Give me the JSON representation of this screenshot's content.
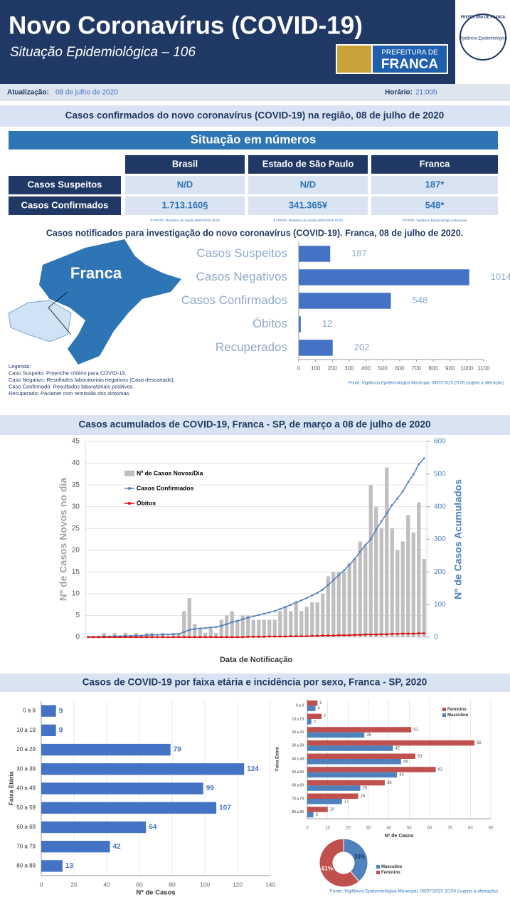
{
  "header": {
    "title": "Novo Coronavírus (COVID-19)",
    "subtitle": "Situação Epidemiológica – 106",
    "logo_top": "PREFEITURA DE",
    "logo_bottom": "FRANCA",
    "seal_top": "PREFEITURA DE FRANCA",
    "seal_middle": "Vigilância Epidemiológica"
  },
  "update": {
    "label": "Atualização:",
    "date": "08 de julho de 2020",
    "time_label": "Horário:",
    "time": "21:00h"
  },
  "sections": [
    "Casos confirmados do novo coronavírus (COVID-19) na região, 08 de julho de 2020",
    "Casos acumulados de COVID-19, Franca - SP, de março a 08 de julho de 2020",
    "Casos de COVID-19 por faixa etária e incidência por sexo, Franca - SP, 2020"
  ],
  "table": {
    "title": "Situação em números",
    "columns": [
      "Brasil",
      "Estado de São Paulo",
      "Franca"
    ],
    "rows": [
      [
        "Casos Suspeitos",
        "N/D",
        "N/D",
        "187*"
      ],
      [
        "Casos Confirmados",
        "1.713.160§",
        "341.365¥",
        "548*"
      ]
    ],
    "footnotes": [
      "§ FONTE: Ministério da Saúde 08/07/2020 18:20",
      "¥ FONTE: Ministério da Saúde 08/07/2020 18:20",
      "*FONTE: Vigilância Epidemiológica Municipal"
    ]
  },
  "map_label": "Franca",
  "legend_notes": [
    "Legenda:",
    "Caso Suspeito: Preenche critério para COVID-19.",
    "Caso Negativo: Resultados laboratoriais negativos (Caso descartado).",
    "Caso Confirmado: Resultados laboratoriais positivos.",
    "Recuperado: Paciente com remissão dos sintomas."
  ],
  "footer_source": "Fonte: Vigilância Epidemiológica Municipal, 08/07/2020 20:00 (sujeito à alteração)",
  "chart_data": [
    {
      "type": "bar",
      "orientation": "horizontal",
      "title": "Casos notificados para investigação do novo coronavírus (COVID-19). Franca, 08 de julho de 2020.",
      "categories": [
        "Casos Suspeitos",
        "Casos Negativos",
        "Casos Confirmados",
        "Óbitos",
        "Recuperados"
      ],
      "values": [
        187,
        1014,
        548,
        12,
        202
      ],
      "color": "#4472c4",
      "xlim": [
        0,
        1100
      ],
      "xticks": [
        0,
        100,
        200,
        300,
        400,
        500,
        600,
        700,
        800,
        900,
        1000,
        1100
      ],
      "grid": false,
      "source": "Fonte: Vigilância Epidemiológica Municipal, 08/07/2020 20:00  (sujeito à alteração)"
    },
    {
      "type": "combo",
      "x_label": "Data de Notificação",
      "y_label": "Nº de Casos Novos no dia",
      "y2_label": "Nº de Casos Acumulados",
      "categories": [
        null,
        null,
        null,
        null,
        null,
        null,
        null,
        null,
        null,
        null,
        null,
        null,
        null,
        null,
        null,
        null,
        null,
        null,
        null,
        null,
        null,
        null,
        null,
        null,
        null,
        null,
        null,
        null,
        null,
        null,
        null,
        null,
        null,
        null,
        null,
        null,
        null,
        null,
        null,
        null,
        null,
        null,
        null,
        null,
        null,
        null,
        null,
        null,
        null,
        null,
        null,
        null,
        null,
        null,
        null,
        null,
        null,
        null,
        null,
        null,
        null,
        null,
        null,
        null
      ],
      "series": [
        {
          "name": "Nº de Casos Novos/Dia",
          "color": "#bfbfbf",
          "axis": "y",
          "values": [
            0,
            0,
            0,
            1,
            0,
            1,
            0,
            1,
            0,
            1,
            0,
            1,
            1,
            0,
            1,
            0,
            1,
            1,
            6,
            9,
            3,
            2,
            1,
            2,
            1,
            4,
            5,
            6,
            4,
            5,
            5,
            4,
            4,
            4,
            4,
            4,
            6,
            7,
            6,
            8,
            6,
            7,
            8,
            8,
            10,
            14,
            15,
            15,
            15,
            17,
            18,
            22,
            21,
            35,
            30,
            25,
            39,
            25,
            20,
            22,
            28,
            24,
            31,
            18
          ]
        },
        {
          "name": "Casos Confirmados",
          "color": "#4f81bd",
          "axis": "y2",
          "values": [
            1,
            1,
            1,
            2,
            2,
            3,
            3,
            4,
            4,
            5,
            5,
            6,
            7,
            7,
            8,
            8,
            9,
            10,
            16,
            22,
            25,
            27,
            28,
            30,
            31,
            35,
            40,
            46,
            50,
            55,
            60,
            64,
            68,
            72,
            76,
            80,
            86,
            93,
            99,
            107,
            113,
            120,
            128,
            136,
            146,
            160,
            175,
            190,
            205,
            222,
            240,
            262,
            283,
            300,
            330,
            355,
            380,
            405,
            425,
            447,
            475,
            499,
            530,
            548
          ]
        },
        {
          "name": "Óbitos",
          "color": "#e00000",
          "axis": "y2",
          "values": [
            0,
            0,
            0,
            0,
            0,
            0,
            0,
            0,
            0,
            0,
            0,
            0,
            0,
            0,
            0,
            0,
            0,
            0,
            0,
            0,
            0,
            0,
            0,
            0,
            0,
            0,
            0,
            0,
            0,
            0,
            1,
            1,
            1,
            1,
            2,
            2,
            2,
            2,
            3,
            3,
            3,
            3,
            4,
            4,
            5,
            5,
            5,
            6,
            6,
            6,
            7,
            7,
            8,
            8,
            8,
            9,
            9,
            10,
            10,
            11,
            11,
            11,
            12,
            12
          ]
        }
      ],
      "ylim": [
        0,
        45
      ],
      "yticks": [
        0,
        5,
        10,
        15,
        20,
        25,
        30,
        35,
        40,
        45
      ],
      "y2lim": [
        0,
        600
      ],
      "y2ticks": [
        0,
        100,
        200,
        300,
        400,
        500,
        600
      ],
      "grid": true,
      "legend": "upper left"
    },
    {
      "type": "bar",
      "orientation": "horizontal",
      "x_label": "Nº de Casos",
      "y_label": "Faixa Etária",
      "categories": [
        "0 a 9",
        "10 a 19",
        "20 a 29",
        "30 a 39",
        "40 a 49",
        "50 a 59",
        "60  a 69",
        "70 a 79",
        "80 a 89"
      ],
      "values": [
        9,
        9,
        79,
        124,
        99,
        107,
        64,
        42,
        13
      ],
      "color": "#4472c4",
      "xlim": [
        0,
        140
      ],
      "xticks": [
        0,
        20,
        40,
        60,
        80,
        100,
        120,
        140
      ],
      "grid": true
    },
    {
      "type": "bar",
      "orientation": "horizontal",
      "x_label": "Nº de Casos",
      "y_label": "Faixa Etária",
      "categories": [
        "0 a 9",
        "10 a 19",
        "20 a 29",
        "30 a 39",
        "40 a 49",
        "50 a 59",
        "60  a 69",
        "70 a 79",
        "80 a 89"
      ],
      "series": [
        {
          "name": "Feminino",
          "color": "#c0504d",
          "values": [
            5,
            7,
            51,
            82,
            53,
            63,
            38,
            25,
            10
          ]
        },
        {
          "name": "Masculino",
          "color": "#4f81bd",
          "values": [
            4,
            2,
            28,
            42,
            46,
            44,
            26,
            17,
            3
          ]
        }
      ],
      "xlim": [
        0,
        90
      ],
      "xticks": [
        0,
        10,
        20,
        30,
        40,
        50,
        60,
        70,
        80,
        90
      ],
      "grid": true,
      "legend": "upper right"
    },
    {
      "type": "pie",
      "categories": [
        "Masculino",
        "Feminino"
      ],
      "values": [
        39,
        61
      ],
      "value_labels": [
        "39%",
        "61%"
      ],
      "colors": [
        "#4f81bd",
        "#c0504d"
      ],
      "legend": "right"
    }
  ]
}
